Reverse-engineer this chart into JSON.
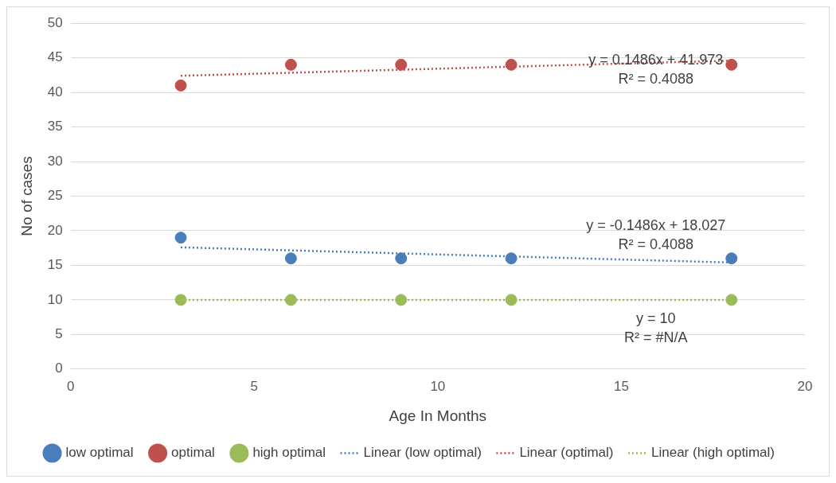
{
  "chart_data": {
    "type": "scatter",
    "xlabel": "Age In Months",
    "ylabel": "No of cases",
    "xlim": [
      0,
      20
    ],
    "xticks": [
      0,
      5,
      10,
      15,
      20
    ],
    "ylim": [
      0,
      50
    ],
    "yticks": [
      0,
      5,
      10,
      15,
      20,
      25,
      30,
      35,
      40,
      45,
      50
    ],
    "grid": "y",
    "legend": "bottom",
    "marker": "circle",
    "series": [
      {
        "name": "low optimal",
        "type": "scatter",
        "color": "#4a7ebb",
        "x": [
          3,
          6,
          9,
          12,
          18
        ],
        "values": [
          19,
          16,
          16,
          16,
          16
        ]
      },
      {
        "name": "optimal",
        "type": "scatter",
        "color": "#c0504d",
        "x": [
          3,
          6,
          9,
          12,
          18
        ],
        "values": [
          41,
          44,
          44,
          44,
          44
        ]
      },
      {
        "name": "high optimal",
        "type": "scatter",
        "color": "#9bbb59",
        "x": [
          3,
          6,
          9,
          12,
          18
        ],
        "values": [
          10,
          10,
          10,
          10,
          10
        ]
      },
      {
        "name": "Linear (low optimal)",
        "type": "line",
        "line_style": "dotted",
        "marker": "none",
        "color": "#4a7ebb",
        "x": [
          3,
          18
        ],
        "values": [
          17.6,
          15.4
        ]
      },
      {
        "name": "Linear (optimal)",
        "type": "line",
        "line_style": "dotted",
        "marker": "none",
        "color": "#c0504d",
        "x": [
          3,
          18
        ],
        "values": [
          42.4,
          44.6
        ]
      },
      {
        "name": "Linear (high optimal)",
        "type": "line",
        "line_style": "dotted",
        "marker": "none",
        "color": "#9bbb59",
        "x": [
          3,
          18
        ],
        "values": [
          10,
          10
        ]
      }
    ],
    "annotations": [
      "y = 0.1486x + 41.973",
      "R² = 0.4088",
      "y = -0.1486x + 18.027",
      "R² = 0.4088",
      "y = 10",
      "R² = #N/A"
    ]
  }
}
